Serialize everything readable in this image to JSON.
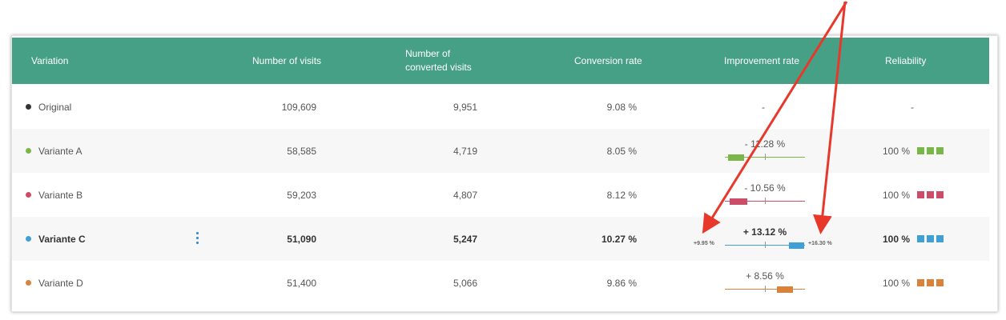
{
  "header": {
    "variation": "Variation",
    "visits": "Number of visits",
    "converted_line1": "Number of",
    "converted_line2": "converted visits",
    "conversion": "Conversion rate",
    "improvement": "Improvement rate",
    "reliability": "Reliability"
  },
  "rows": [
    {
      "name": "Original",
      "visits": "109,609",
      "converted": "9,951",
      "conversion": "9.08 %",
      "improvement": "-",
      "reliability": "-",
      "color": "#333333"
    },
    {
      "name": "Variante A",
      "visits": "58,585",
      "converted": "4,719",
      "conversion": "8.05 %",
      "improvement": "- 11.28 %",
      "reliability": "100 %",
      "color": "#7ab648"
    },
    {
      "name": "Variante B",
      "visits": "59,203",
      "converted": "4,807",
      "conversion": "8.12 %",
      "improvement": "- 10.56 %",
      "reliability": "100 %",
      "color": "#cc4d68"
    },
    {
      "name": "Variante C",
      "visits": "51,090",
      "converted": "5,247",
      "conversion": "10.27 %",
      "improvement": "+ 13.12 %",
      "reliability": "100 %",
      "color": "#3fa0d5",
      "ci_low": "+9.95 %",
      "ci_high": "+16.30 %"
    },
    {
      "name": "Variante D",
      "visits": "51,400",
      "converted": "5,066",
      "conversion": "9.86 %",
      "improvement": "+ 8.56 %",
      "reliability": "100 %",
      "color": "#d9823b"
    }
  ],
  "colors": {
    "header_bg": "#46a085",
    "annotation_arrow": "#e8382b",
    "kebab": "#3a8fc8"
  },
  "icons": {
    "row_menu": "kebab-menu-icon"
  }
}
